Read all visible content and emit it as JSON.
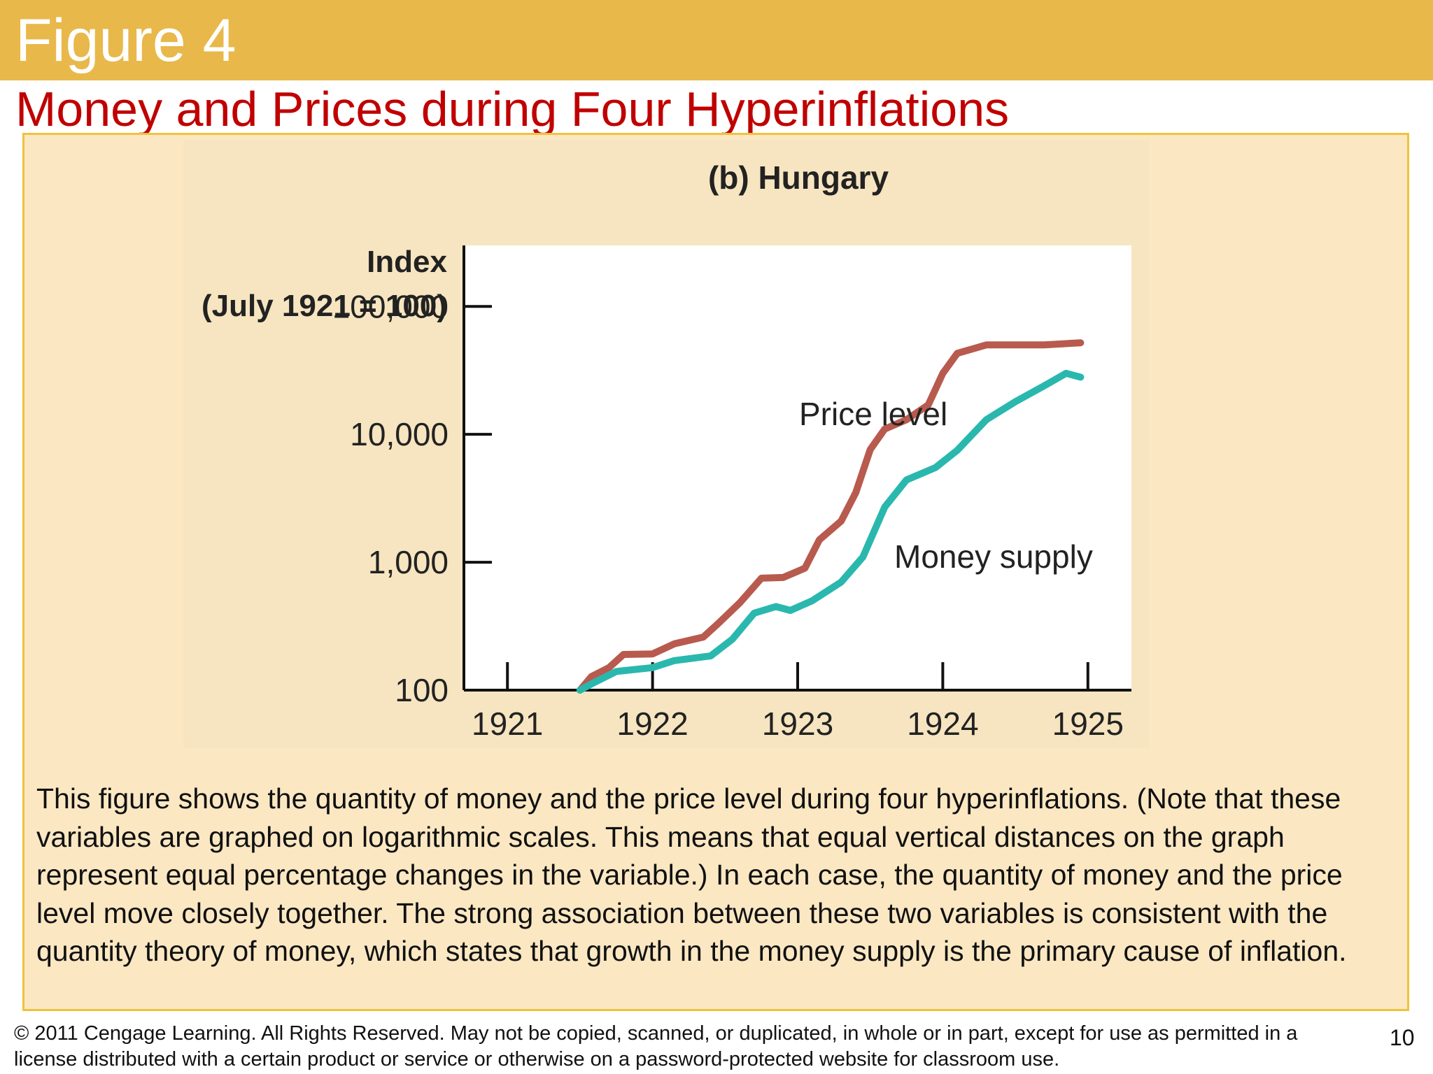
{
  "slide": {
    "figure_label": "Figure 4",
    "title": "Money and Prices during Four Hyperinflations",
    "caption": "This figure shows the quantity of money and the price level during four hyperinflations. (Note that these variables are graphed on logarithmic scales. This means that equal vertical distances on the graph represent equal percentage changes in the variable.) In each case, the quantity of money and the price level move closely together. The strong association between these two variables is consistent with the quantity theory of money, which states that growth in the money supply is the primary cause of inflation.",
    "footer": "© 2011 Cengage Learning. All Rights Reserved. May not be copied, scanned, or duplicated, in whole or in part, except for use as permitted in a license distributed with a certain product or service or otherwise on a password-protected website for classroom use.",
    "page_number": "10"
  },
  "chart_data": {
    "type": "line",
    "title": "(b) Hungary",
    "ylabel_line1": "Index",
    "ylabel_line2": "(July 1921 = 100)",
    "yscale": "log",
    "ylim": [
      100,
      300000
    ],
    "yticks": [
      100,
      1000,
      10000,
      100000
    ],
    "ytick_labels": [
      "100",
      "1,000",
      "10,000",
      "100,000"
    ],
    "xlim": [
      1920.7,
      1925.3
    ],
    "xticks": [
      1921,
      1922,
      1923,
      1924,
      1925
    ],
    "xtick_labels": [
      "1921",
      "1922",
      "1923",
      "1924",
      "1925"
    ],
    "grid": false,
    "series": [
      {
        "name": "Price level",
        "color": "#b85a4e",
        "points": [
          [
            1921.5,
            100
          ],
          [
            1921.58,
            128
          ],
          [
            1921.7,
            150
          ],
          [
            1921.8,
            190
          ],
          [
            1922.0,
            192
          ],
          [
            1922.15,
            230
          ],
          [
            1922.35,
            260
          ],
          [
            1922.45,
            330
          ],
          [
            1922.6,
            480
          ],
          [
            1922.75,
            750
          ],
          [
            1922.9,
            760
          ],
          [
            1923.05,
            900
          ],
          [
            1923.15,
            1500
          ],
          [
            1923.3,
            2100
          ],
          [
            1923.4,
            3500
          ],
          [
            1923.5,
            7600
          ],
          [
            1923.6,
            11000
          ],
          [
            1923.75,
            13000
          ],
          [
            1923.9,
            17000
          ],
          [
            1924.0,
            30000
          ],
          [
            1924.1,
            43000
          ],
          [
            1924.3,
            50000
          ],
          [
            1924.5,
            50000
          ],
          [
            1924.7,
            50000
          ],
          [
            1924.95,
            52000
          ]
        ]
      },
      {
        "name": "Money supply",
        "color": "#2ab8ae",
        "points": [
          [
            1921.5,
            100
          ],
          [
            1921.6,
            115
          ],
          [
            1921.75,
            140
          ],
          [
            1922.0,
            150
          ],
          [
            1922.15,
            170
          ],
          [
            1922.4,
            185
          ],
          [
            1922.55,
            250
          ],
          [
            1922.7,
            400
          ],
          [
            1922.85,
            450
          ],
          [
            1922.95,
            420
          ],
          [
            1923.1,
            500
          ],
          [
            1923.3,
            700
          ],
          [
            1923.45,
            1100
          ],
          [
            1923.6,
            2700
          ],
          [
            1923.75,
            4400
          ],
          [
            1923.95,
            5500
          ],
          [
            1924.1,
            7500
          ],
          [
            1924.3,
            13000
          ],
          [
            1924.5,
            18000
          ],
          [
            1924.7,
            24000
          ],
          [
            1924.85,
            30000
          ],
          [
            1924.95,
            28000
          ]
        ]
      }
    ]
  }
}
